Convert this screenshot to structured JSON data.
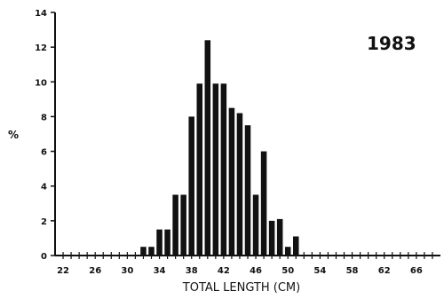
{
  "chart_data": {
    "type": "bar",
    "title": "1983",
    "xlabel": "TOTAL LENGTH (CM)",
    "ylabel": "%",
    "xlim": [
      21,
      69
    ],
    "ylim": [
      0,
      14
    ],
    "yticks": [
      0,
      2,
      4,
      6,
      8,
      10,
      12,
      14
    ],
    "xticks": [
      22,
      26,
      30,
      34,
      38,
      42,
      46,
      50,
      54,
      58,
      62,
      66
    ],
    "xtick_labels": [
      "22",
      "26",
      "30",
      "34",
      "38",
      "42",
      "46",
      "50",
      "54",
      "58",
      "62",
      "66"
    ],
    "ytick_labels": [
      "0",
      "2",
      "4",
      "6",
      "8",
      "10",
      "12",
      "14"
    ],
    "x": [
      32,
      33,
      34,
      35,
      36,
      37,
      38,
      39,
      40,
      41,
      42,
      43,
      44,
      45,
      46,
      47,
      48,
      49,
      50,
      51
    ],
    "values": [
      0.5,
      0.5,
      1.5,
      1.5,
      3.5,
      3.5,
      8.0,
      9.9,
      12.4,
      9.9,
      9.9,
      8.5,
      8.2,
      7.5,
      3.5,
      6.0,
      2.0,
      2.1,
      0.5,
      1.1
    ],
    "grid": false,
    "colors": {
      "bar": "#111111",
      "axis": "#111111"
    }
  }
}
